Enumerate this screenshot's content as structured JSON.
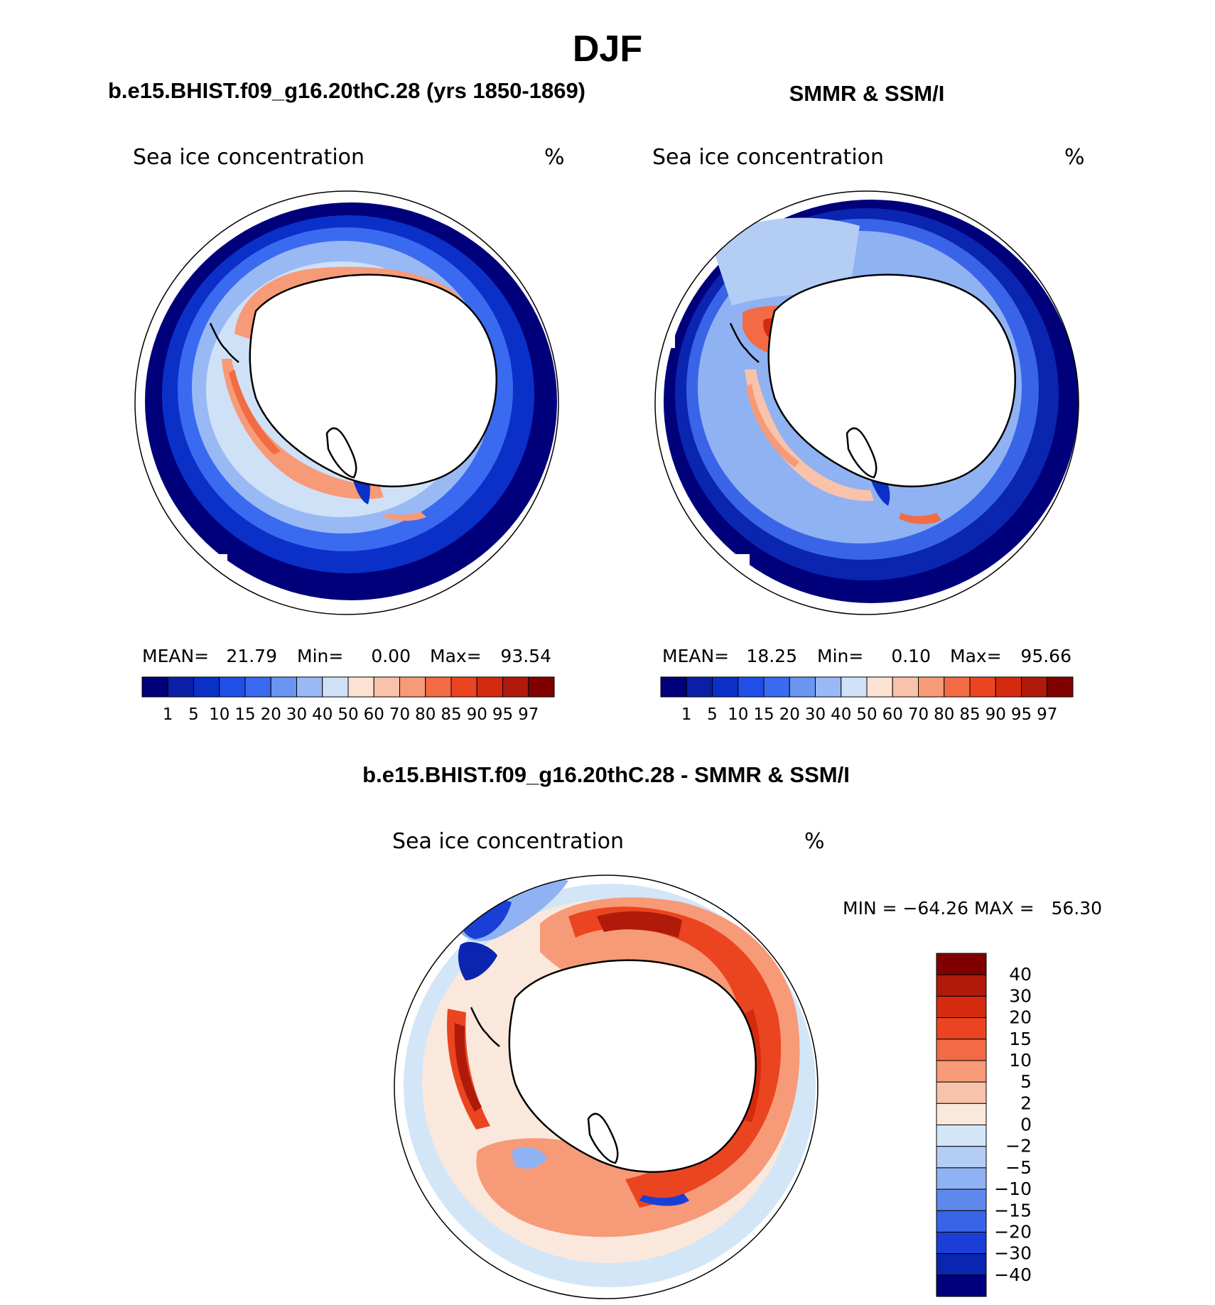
{
  "chart_data": {
    "type": "heatmap",
    "title": "DJF",
    "panels": [
      {
        "id": "model",
        "subtitle": "b.e15.BHIST.f09_g16.20thC.28 (yrs 1850-1869)",
        "variable": "Sea ice concentration",
        "units": "%",
        "stats": {
          "mean_label": "MEAN=",
          "mean": "21.79",
          "min_label": "Min=",
          "min": "0.00",
          "max_label": "Max=",
          "max": "93.54"
        }
      },
      {
        "id": "obs",
        "subtitle": "SMMR & SSM/I",
        "variable": "Sea ice concentration",
        "units": "%",
        "stats": {
          "mean_label": "MEAN=",
          "mean": "18.25",
          "min_label": "Min=",
          "min": "0.10",
          "max_label": "Max=",
          "max": "95.66"
        }
      },
      {
        "id": "diff",
        "subtitle": "b.e15.BHIST.f09_g16.20thC.28 - SMMR & SSM/I",
        "variable": "Sea ice concentration",
        "units": "%",
        "stats_text": "MIN = −64.26 MAX =   56.30"
      }
    ],
    "concentration_colorbar": {
      "levels": [
        "1",
        "5",
        "10",
        "15",
        "20",
        "30",
        "40",
        "50",
        "60",
        "70",
        "80",
        "85",
        "90",
        "95",
        "97"
      ],
      "colors": [
        "#00007a",
        "#0a1fa6",
        "#0a30c8",
        "#1f4fe6",
        "#3a6af0",
        "#6a95f0",
        "#99b9f5",
        "#cfe1f7",
        "#fbe2d2",
        "#f9c2aa",
        "#f79a78",
        "#f26b45",
        "#ea4520",
        "#d42b10",
        "#b01a0a",
        "#800000"
      ]
    },
    "difference_colorbar": {
      "levels": [
        "40",
        "30",
        "20",
        "15",
        "10",
        "5",
        "2",
        "0",
        "−2",
        "−5",
        "−10",
        "−15",
        "−20",
        "−30",
        "−40"
      ],
      "colors": [
        "#800000",
        "#b01a0a",
        "#d42b10",
        "#ea4520",
        "#f26b45",
        "#f79a78",
        "#f9c2aa",
        "#fbe8dc",
        "#d2e6f8",
        "#b4cdf5",
        "#8fb2f2",
        "#5f88ec",
        "#3a64e8",
        "#1a3fd6",
        "#0a25b0",
        "#00007a"
      ]
    }
  }
}
